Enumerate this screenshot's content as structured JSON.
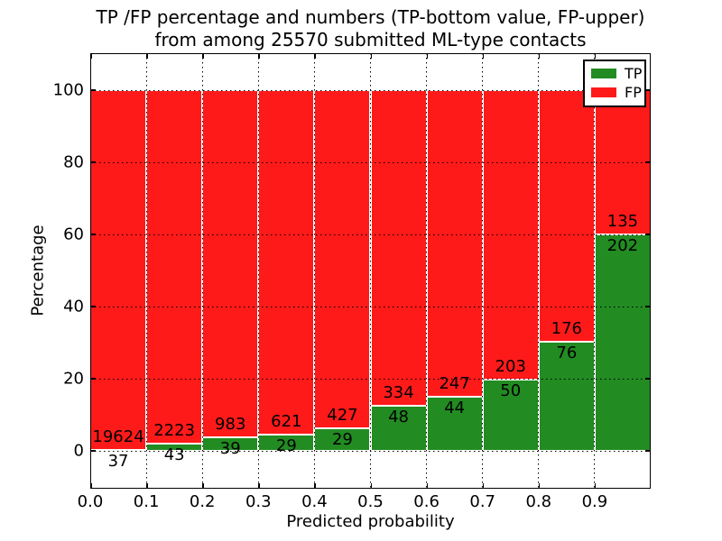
{
  "figure": {
    "title_line1": "TP /FP percentage and numbers (TP-bottom value, FP-upper)",
    "title_line2": "from among 25570 submitted ML-type contacts",
    "xlabel": "Predicted probability",
    "ylabel": "Percentage"
  },
  "legend": {
    "position": "upper right",
    "items": [
      {
        "label": "TP",
        "color": "#228b22"
      },
      {
        "label": "FP",
        "color": "#ff1a1a"
      }
    ]
  },
  "chart_data": {
    "type": "bar",
    "stacked": true,
    "normalized_to_percent": true,
    "title": "TP /FP percentage and numbers (TP-bottom value, FP-upper) from among 25570 submitted ML-type contacts",
    "xlabel": "Predicted probability",
    "ylabel": "Percentage",
    "total_contacts": 25570,
    "categories": [
      "0.0-0.1",
      "0.1-0.2",
      "0.2-0.3",
      "0.3-0.4",
      "0.4-0.5",
      "0.5-0.6",
      "0.6-0.7",
      "0.7-0.8",
      "0.8-0.9",
      "0.9-1.0"
    ],
    "x_tick_labels": [
      "0.0",
      "0.1",
      "0.2",
      "0.3",
      "0.4",
      "0.5",
      "0.6",
      "0.7",
      "0.8",
      "0.9"
    ],
    "y_ticks": [
      0,
      20,
      40,
      60,
      80,
      100
    ],
    "xlim": [
      0.0,
      1.0
    ],
    "ylim": [
      -10.5,
      110.5
    ],
    "grid": "dotted",
    "series": [
      {
        "name": "TP",
        "color": "#228b22",
        "counts": [
          37,
          43,
          39,
          29,
          29,
          48,
          44,
          50,
          76,
          202
        ]
      },
      {
        "name": "FP",
        "color": "#ff1a1a",
        "counts": [
          19624,
          2223,
          983,
          621,
          427,
          334,
          247,
          203,
          176,
          135
        ]
      }
    ],
    "tp_percent": [
      0.19,
      1.9,
      3.82,
      4.46,
      6.36,
      12.57,
      15.12,
      19.76,
      30.16,
      59.94
    ]
  }
}
